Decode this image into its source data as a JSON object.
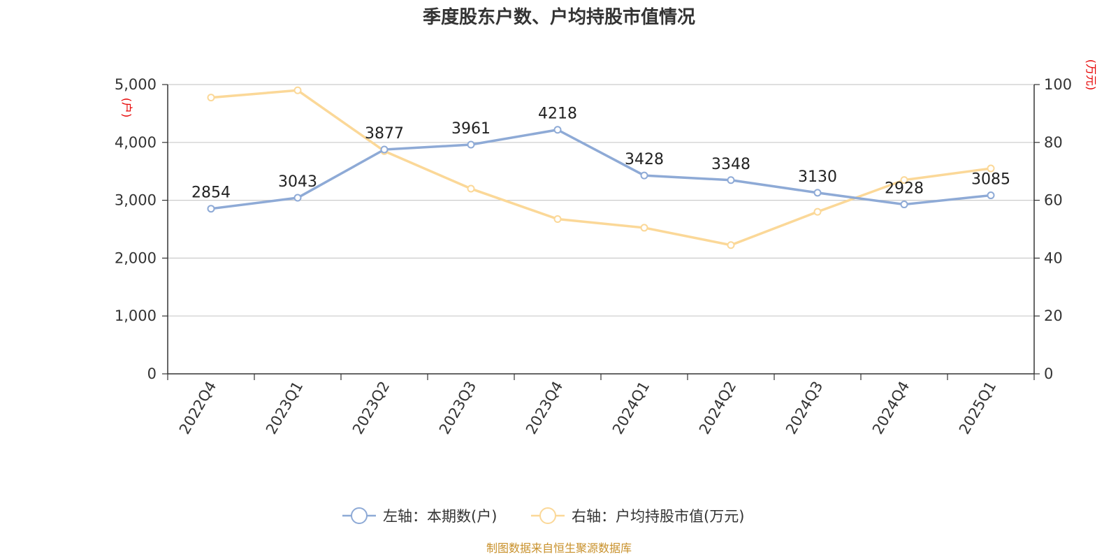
{
  "chart_data": {
    "type": "line",
    "title": "季度股东户数、户均持股市值情况",
    "categories": [
      "2022Q4",
      "2023Q1",
      "2023Q2",
      "2023Q3",
      "2023Q4",
      "2024Q1",
      "2024Q2",
      "2024Q3",
      "2024Q4",
      "2025Q1"
    ],
    "left_axis": {
      "unit": "(户)",
      "ylim": [
        0,
        5000
      ],
      "ticks": [
        "0",
        "1,000",
        "2,000",
        "3,000",
        "4,000",
        "5,000"
      ]
    },
    "right_axis": {
      "unit": "(万元)",
      "ylim": [
        0,
        100
      ],
      "ticks": [
        "0",
        "20",
        "40",
        "60",
        "80",
        "100"
      ]
    },
    "grid": true,
    "legend_position": "bottom",
    "series": [
      {
        "name": "左轴：本期数(户)",
        "axis": "left",
        "color": "#8eaad6",
        "values": [
          2854,
          3043,
          3877,
          3961,
          4218,
          3428,
          3348,
          3130,
          2928,
          3085
        ],
        "data_labels": [
          "2854",
          "3043",
          "3877",
          "3961",
          "4218",
          "3428",
          "3348",
          "3130",
          "2928",
          "3085"
        ]
      },
      {
        "name": "右轴：户均持股市值(万元)",
        "axis": "right",
        "color": "#fbd898",
        "values": [
          95.5,
          98.0,
          77.0,
          64.0,
          53.5,
          50.5,
          44.5,
          56.0,
          67.0,
          71.0
        ]
      }
    ],
    "source": "制图数据来自恒生聚源数据库"
  }
}
